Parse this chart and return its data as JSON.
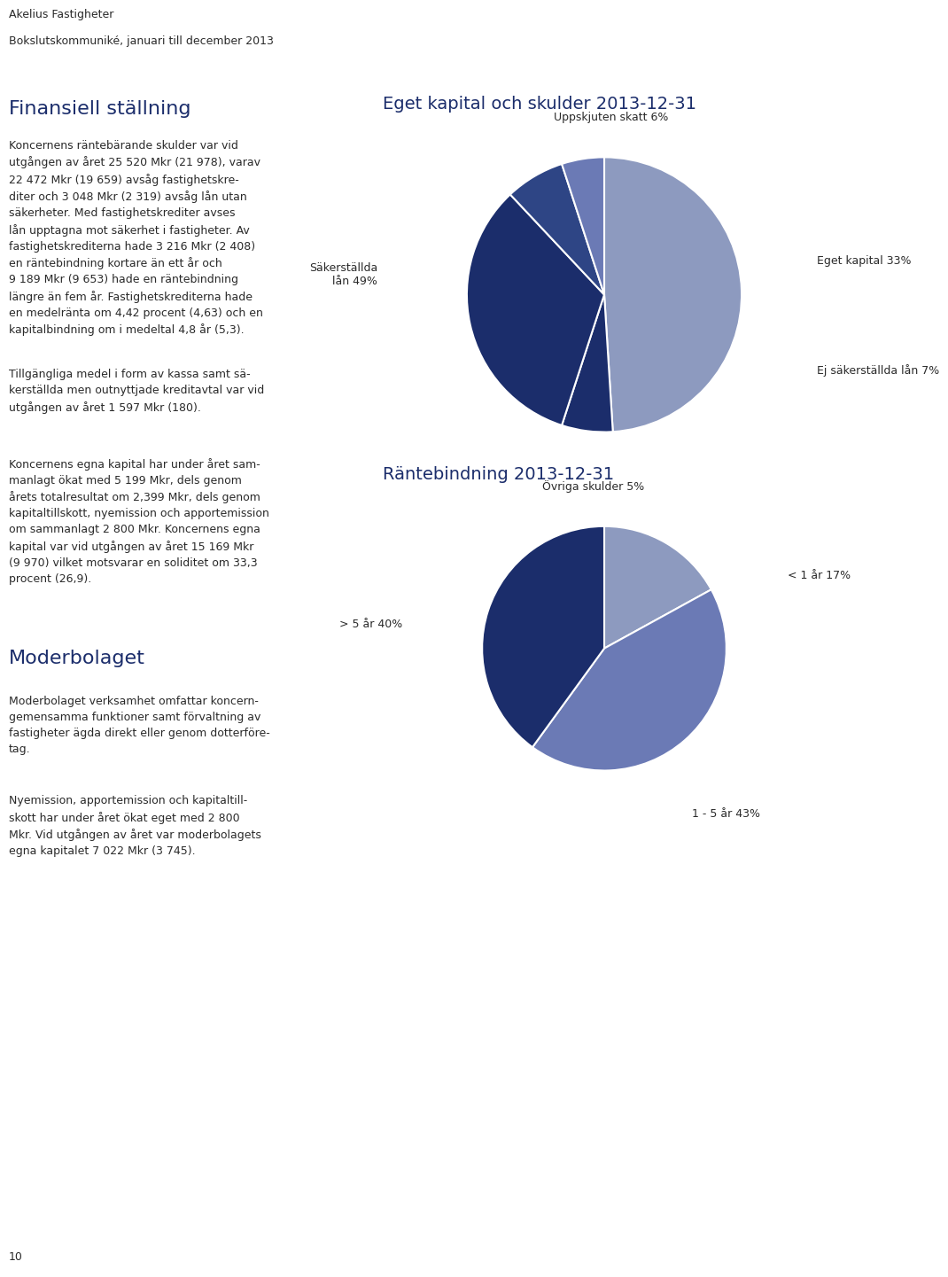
{
  "header_line1": "Akelius Fastigheter",
  "header_line2": "Bokslutskommuniké, januari till december 2013",
  "section1_title": "Finansiell ställning",
  "section1_body": "Koncernens räntebärande skulder var vid\nutgången av året 25 520 Mkr (21 978), varav\n22 472 Mkr (19 659) avsåg fastighetskre-\nditer och 3 048 Mkr (2 319) avsåg lån utan\nsäkerheter. Med fastighetskrediter avses\nlån upptagna mot säkerhet i fastigheter. Av\nfastighetskrediterna hade 3 216 Mkr (2 408)\nen räntebindning kortare än ett år och\n9 189 Mkr (9 653) hade en räntebindning\nlängre än fem år. Fastighetskrediterna hade\nen medelränta om 4,42 procent (4,63) och en\nkapitalbindning om i medeltal 4,8 år (5,3).",
  "section2_body": "Tillgängliga medel i form av kassa samt sä-\nkerställda men outnyttjade kreditavtal var vid\nutgången av året 1 597 Mkr (180).",
  "section_koncernen_body": "Koncernens egna kapital har under året sam-\nmanlagt ökat med 5 199 Mkr, dels genom\nårets totalresultat om 2,399 Mkr, dels genom\nkapitaltillskott, nyemission och apportemission\nom sammanlagt 2 800 Mkr. Koncernens egna\nkapital var vid utgången av året 15 169 Mkr\n(9 970) vilket motsvarar en soliditet om 33,3\nprocent (26,9).",
  "section3_title": "Moderbolaget",
  "section3_body": "Moderbolaget verksamhet omfattar koncern-\ngemensamma funktioner samt förvaltning av\nfastigheter ägda direkt eller genom dotterföre-\ntag.",
  "section4_body": "Nyemission, apportemission och kapitaltill-\nskott har under året ökat eget med 2 800\nMkr. Vid utgången av året var moderbolagets\negna kapitalet 7 022 Mkr (3 745).",
  "page_number": "10",
  "pie1_title": "Eget kapital och skulder 2013-12-31",
  "pie1_slices": [
    49,
    6,
    33,
    7,
    5
  ],
  "pie1_colors": [
    "#8d9abf",
    "#1b2d6b",
    "#1b2d6b",
    "#2e4585",
    "#6b7ab5"
  ],
  "pie1_label_texts": [
    "Säkerställda\nlån 49%",
    "Uppskjuten skatt 6%",
    "Eget kapital 33%",
    "Ej säkerställda lån 7%",
    "Övriga skulder 5%"
  ],
  "pie2_title": "Räntebindning 2013-12-31",
  "pie2_slices": [
    17,
    43,
    40
  ],
  "pie2_colors": [
    "#8d9abf",
    "#6b7ab5",
    "#1b2d6b"
  ],
  "pie2_label_texts": [
    "< 1 år 17%",
    "1 - 5 år 43%",
    "> 5 år 40%"
  ],
  "title_color": "#1b2d6b",
  "text_color": "#2a2a2a",
  "background_color": "#ffffff"
}
